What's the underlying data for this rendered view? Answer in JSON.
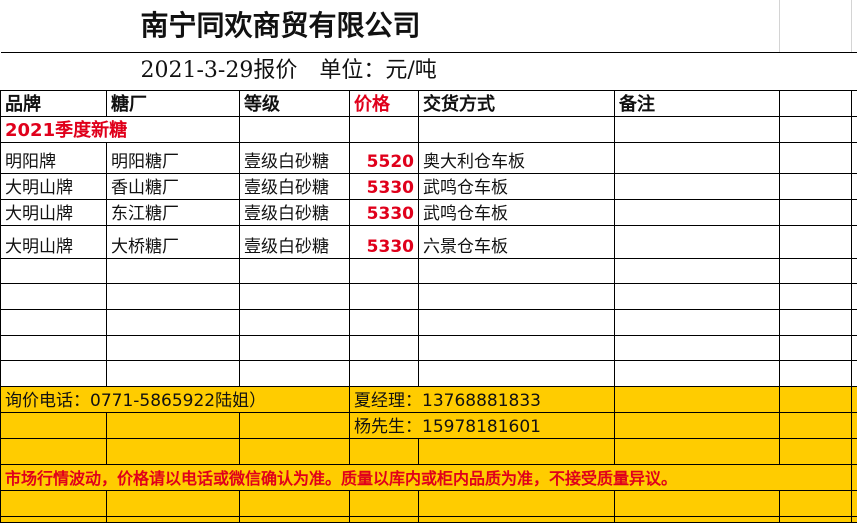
{
  "title": "南宁同欢商贸有限公司",
  "subtitle": "2021-3-29报价　单位：元/吨",
  "headers": [
    "品牌",
    "糖厂",
    "等级",
    "价格",
    "交货方式",
    "备注"
  ],
  "section_label": "2021季度新糖",
  "rows": [
    {
      "brand": "明阳牌",
      "factory": "明阳糖厂",
      "grade": "壹级白砂糖",
      "price": "5520",
      "delivery": "奥大利仓车板",
      "remark": ""
    },
    {
      "brand": "大明山牌",
      "factory": "香山糖厂",
      "grade": "壹级白砂糖",
      "price": "5330",
      "delivery": "武鸣仓车板",
      "remark": ""
    },
    {
      "brand": "大明山牌",
      "factory": "东江糖厂",
      "grade": "壹级白砂糖",
      "price": "5330",
      "delivery": "武鸣仓车板",
      "remark": ""
    },
    {
      "brand": "大明山牌",
      "factory": "大桥糖厂",
      "grade": "壹级白砂糖",
      "price": "5330",
      "delivery": "六景仓车板",
      "remark": ""
    }
  ],
  "contact": {
    "phone": "询价电话：0771-5865922陆姐）",
    "manager_xia": "夏经理：13768881833",
    "mr_yang": "杨先生：15978181601"
  },
  "notice": "市场行情波动，价格请以电话或微信确认为准。质量以库内或柜内品质为准，不接受质量异议。",
  "colors": {
    "highlight": "#ffcc00",
    "accent_red": "#e0001b"
  }
}
